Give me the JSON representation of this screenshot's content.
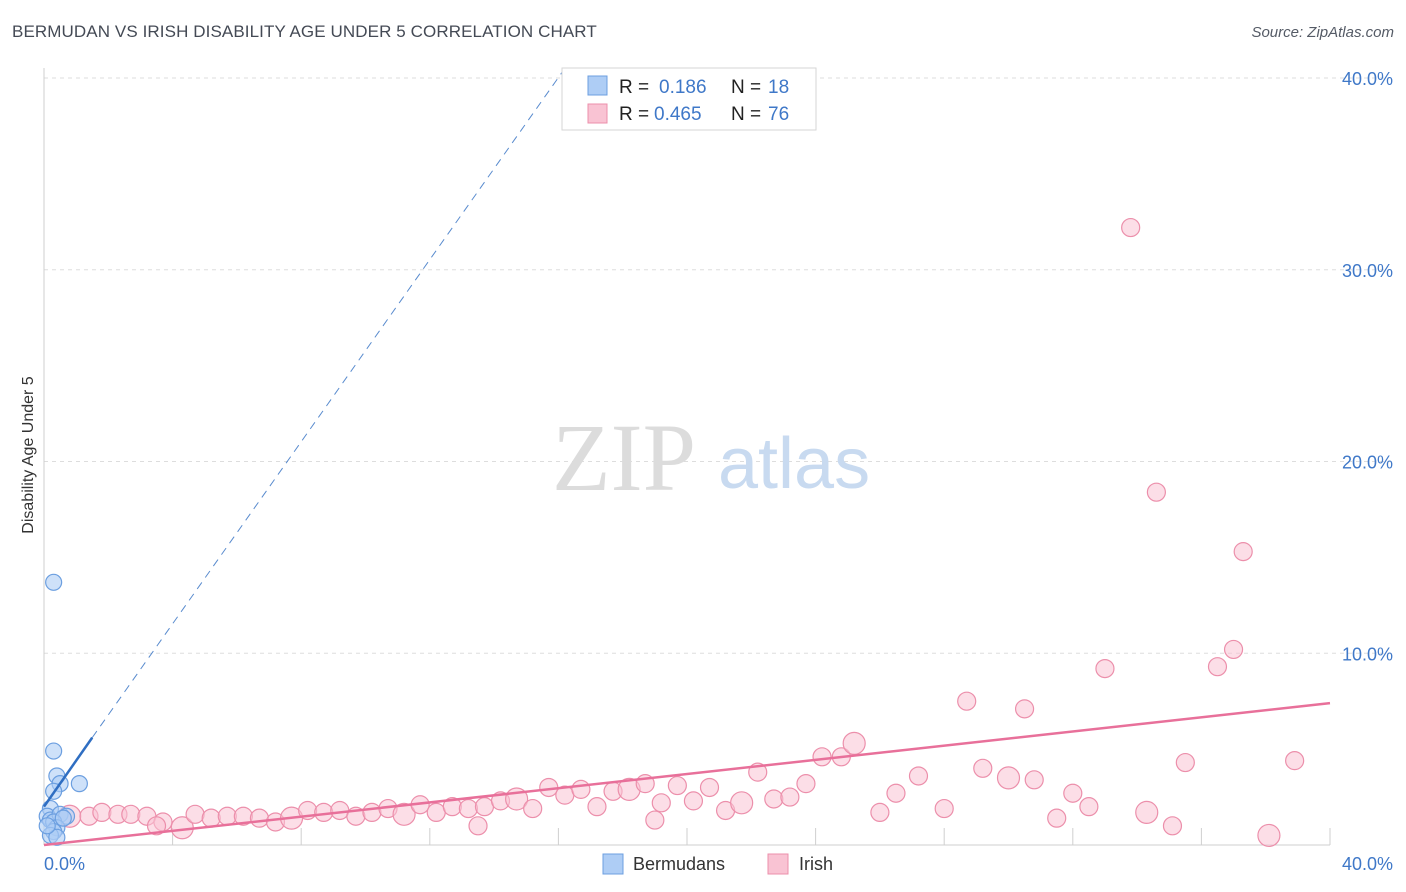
{
  "header": {
    "title": "BERMUDAN VS IRISH DISABILITY AGE UNDER 5 CORRELATION CHART",
    "source": "Source: ZipAtlas.com"
  },
  "watermark": {
    "zip": "ZIP",
    "atlas": "atlas"
  },
  "legend_top": {
    "rows": [
      {
        "r_label": "R =",
        "r_value": "0.186",
        "n_label": "N =",
        "n_value": "18"
      },
      {
        "r_label": "R =",
        "r_value": "0.465",
        "n_label": "N =",
        "n_value": "76"
      }
    ]
  },
  "legend_bottom": {
    "items": [
      "Bermudans",
      "Irish"
    ]
  },
  "colors": {
    "blue_fill": "#aecdf5",
    "blue_stroke": "#6c9fe0",
    "blue_line": "#2f6ec2",
    "pink_fill": "#f9c3d3",
    "pink_stroke": "#ec8fab",
    "pink_line": "#e8709a",
    "grid": "#dddddd",
    "tick_text": "#3f78c8"
  },
  "chart_data": {
    "type": "scatter",
    "title": "BERMUDAN VS IRISH DISABILITY AGE UNDER 5 CORRELATION CHART",
    "xlabel": "",
    "ylabel": "Disability Age Under 5",
    "xlim": [
      0,
      40
    ],
    "ylim": [
      0,
      40
    ],
    "x_tick_labels": [
      "0.0%",
      "40.0%"
    ],
    "y_ticks": [
      10,
      20,
      30,
      40
    ],
    "y_tick_labels": [
      "10.0%",
      "20.0%",
      "30.0%",
      "40.0%"
    ],
    "grid": true,
    "series": [
      {
        "name": "Bermudans",
        "r": 0.186,
        "n": 18,
        "points": [
          [
            0.3,
            13.7
          ],
          [
            0.3,
            4.9
          ],
          [
            0.4,
            3.6
          ],
          [
            1.1,
            3.2
          ],
          [
            0.5,
            3.2
          ],
          [
            0.3,
            2.8
          ],
          [
            0.2,
            1.9
          ],
          [
            0.1,
            1.5
          ],
          [
            0.2,
            1.3
          ],
          [
            0.5,
            1.6
          ],
          [
            0.7,
            1.5
          ],
          [
            0.3,
            1.2
          ],
          [
            0.4,
            0.9
          ],
          [
            0.3,
            0.7
          ],
          [
            0.2,
            0.5
          ],
          [
            0.4,
            0.4
          ],
          [
            0.1,
            1.0
          ],
          [
            0.6,
            1.4
          ]
        ],
        "trend_solid": [
          [
            0,
            2.0
          ],
          [
            1.5,
            5.6
          ]
        ],
        "trend_dashed": [
          [
            1.5,
            5.6
          ],
          [
            16.2,
            40.5
          ]
        ]
      },
      {
        "name": "Irish",
        "r": 0.465,
        "n": 76,
        "points": [
          [
            0.8,
            1.5
          ],
          [
            1.4,
            1.5
          ],
          [
            1.8,
            1.7
          ],
          [
            2.3,
            1.6
          ],
          [
            2.7,
            1.6
          ],
          [
            3.2,
            1.5
          ],
          [
            3.7,
            1.2
          ],
          [
            4.3,
            0.9
          ],
          [
            4.7,
            1.6
          ],
          [
            5.2,
            1.4
          ],
          [
            5.7,
            1.5
          ],
          [
            6.2,
            1.5
          ],
          [
            6.7,
            1.4
          ],
          [
            7.2,
            1.2
          ],
          [
            7.7,
            1.4
          ],
          [
            8.2,
            1.8
          ],
          [
            8.7,
            1.7
          ],
          [
            9.2,
            1.8
          ],
          [
            9.7,
            1.5
          ],
          [
            10.2,
            1.7
          ],
          [
            10.7,
            1.9
          ],
          [
            11.2,
            1.6
          ],
          [
            11.7,
            2.1
          ],
          [
            12.2,
            1.7
          ],
          [
            12.7,
            2.0
          ],
          [
            13.2,
            1.9
          ],
          [
            13.7,
            2.0
          ],
          [
            14.2,
            2.3
          ],
          [
            14.7,
            2.4
          ],
          [
            15.2,
            1.9
          ],
          [
            15.7,
            3.0
          ],
          [
            16.2,
            2.6
          ],
          [
            16.7,
            2.9
          ],
          [
            17.2,
            2.0
          ],
          [
            17.7,
            2.8
          ],
          [
            18.2,
            2.9
          ],
          [
            18.7,
            3.2
          ],
          [
            19.2,
            2.2
          ],
          [
            19.7,
            3.1
          ],
          [
            20.2,
            2.3
          ],
          [
            20.7,
            3.0
          ],
          [
            21.2,
            1.8
          ],
          [
            21.7,
            2.2
          ],
          [
            22.2,
            3.8
          ],
          [
            22.7,
            2.4
          ],
          [
            23.2,
            2.5
          ],
          [
            23.7,
            3.2
          ],
          [
            24.2,
            4.6
          ],
          [
            24.8,
            4.6
          ],
          [
            25.2,
            5.3
          ],
          [
            26.0,
            1.7
          ],
          [
            26.5,
            2.7
          ],
          [
            27.2,
            3.6
          ],
          [
            28.0,
            1.9
          ],
          [
            28.7,
            7.5
          ],
          [
            29.2,
            4.0
          ],
          [
            30.0,
            3.5
          ],
          [
            30.5,
            7.1
          ],
          [
            30.8,
            3.4
          ],
          [
            31.5,
            1.4
          ],
          [
            32.0,
            2.7
          ],
          [
            32.5,
            2.0
          ],
          [
            33.0,
            9.2
          ],
          [
            34.3,
            1.7
          ],
          [
            35.1,
            1.0
          ],
          [
            35.5,
            4.3
          ],
          [
            36.5,
            9.3
          ],
          [
            37.0,
            10.2
          ],
          [
            37.3,
            15.3
          ],
          [
            38.9,
            4.4
          ],
          [
            38.1,
            0.5
          ],
          [
            33.8,
            32.2
          ],
          [
            34.6,
            18.4
          ],
          [
            19.0,
            1.3
          ],
          [
            13.5,
            1.0
          ],
          [
            3.5,
            1.0
          ]
        ],
        "trend": [
          [
            0,
            0
          ],
          [
            40,
            7.4
          ]
        ]
      }
    ]
  }
}
